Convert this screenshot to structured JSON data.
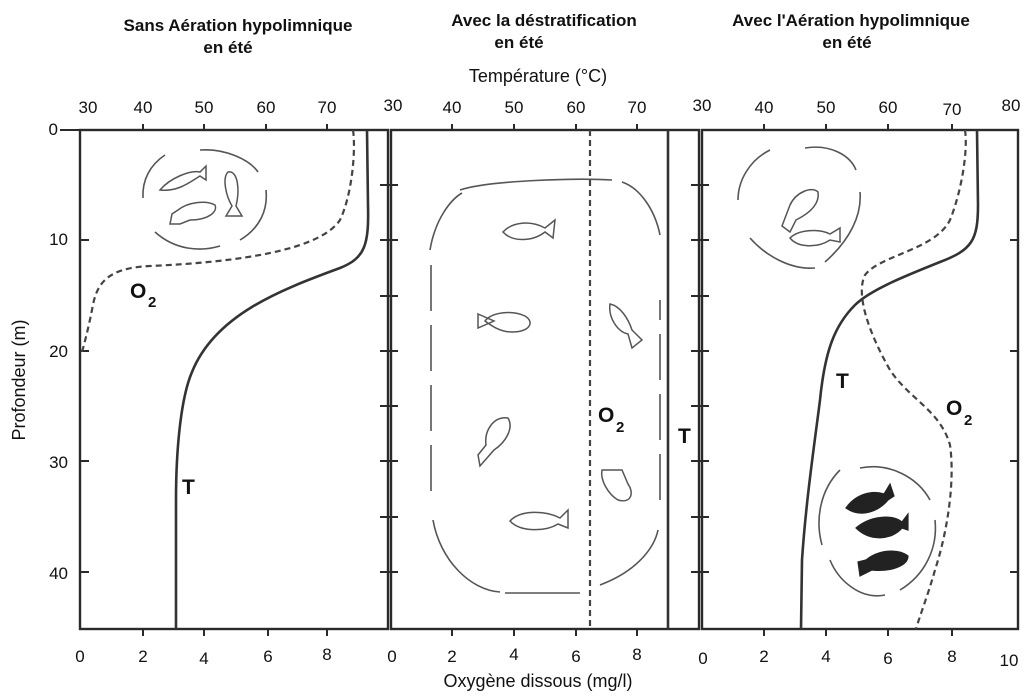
{
  "panels": [
    {
      "title_line1": "Sans Aération hypolimnique",
      "title_line2": "en été"
    },
    {
      "title_line1": "Avec la déstratification",
      "title_line2": "en été"
    },
    {
      "title_line1": "Avec l'Aération hypolimnique",
      "title_line2": "en été"
    }
  ],
  "axes": {
    "top_title": "Température (°C)",
    "bottom_title": "Oxygène dissous (mg/l)",
    "left_title": "Profondeur (m)",
    "depth_ticks": [
      "0",
      "10",
      "20",
      "30",
      "40"
    ],
    "temp_ticks": [
      [
        "30",
        "40",
        "50",
        "60",
        "70"
      ],
      [
        "30",
        "40",
        "50",
        "60",
        "70"
      ],
      [
        "30",
        "40",
        "50",
        "60",
        "70",
        "80"
      ]
    ],
    "oxy_ticks": [
      [
        "0",
        "2",
        "4",
        "6",
        "8"
      ],
      [
        "0",
        "2",
        "4",
        "6",
        "8"
      ],
      [
        "0",
        "2",
        "4",
        "6",
        "8",
        "10"
      ]
    ]
  },
  "labels": {
    "temperature": "T",
    "oxygen": "O",
    "oxygen_sub": "2"
  },
  "colors": {
    "ink": "#2a2a2a",
    "curve": "#333333",
    "fish_outline": "#555555",
    "fish_dark": "#222222"
  }
}
